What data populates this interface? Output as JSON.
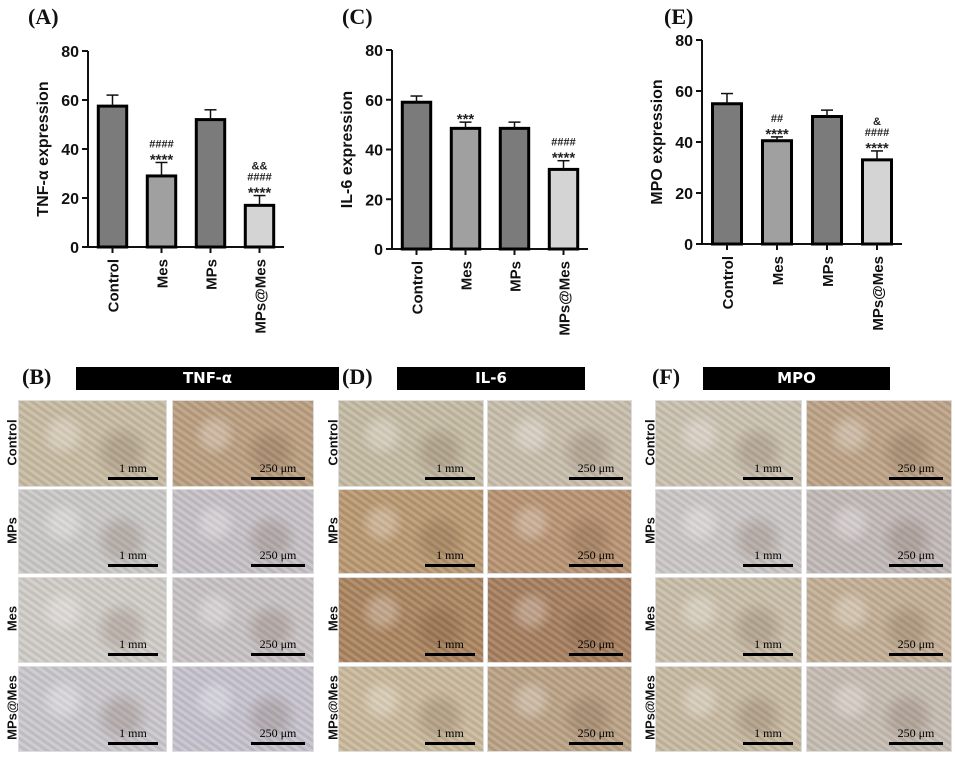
{
  "panels_label": {
    "A": "(A)",
    "B": "(B)",
    "C": "(C)",
    "D": "(D)",
    "E": "(E)",
    "F": "(F)"
  },
  "chart_data": [
    {
      "type": "bar",
      "panel": "A",
      "ylabel": "TNF-α expression",
      "ylim": [
        0,
        80
      ],
      "yticks": [
        "0",
        "20",
        "40",
        "60",
        "80"
      ],
      "categories": [
        "Control",
        "Mes",
        "MPs",
        "MPs@Mes"
      ],
      "values": [
        57.5,
        29,
        52,
        17
      ],
      "errors": [
        4.5,
        5.5,
        4,
        4
      ],
      "annotations": [
        [],
        [
          "####",
          "****"
        ],
        [],
        [
          "&&",
          "####",
          "****"
        ]
      ],
      "bar_colors": [
        "#7b7b7b",
        "#a0a0a0",
        "#7b7b7b",
        "#d4d4d4"
      ]
    },
    {
      "type": "bar",
      "panel": "C",
      "ylabel": "IL-6 expression",
      "ylim": [
        0,
        80
      ],
      "yticks": [
        "0",
        "20",
        "40",
        "60",
        "80"
      ],
      "categories": [
        "Control",
        "Mes",
        "MPs",
        "MPs@Mes"
      ],
      "values": [
        59,
        48.5,
        48.5,
        32
      ],
      "errors": [
        2.5,
        2.5,
        2.5,
        3.5
      ],
      "annotations": [
        [],
        [
          "***"
        ],
        [],
        [
          "####",
          "****"
        ]
      ],
      "bar_colors": [
        "#7b7b7b",
        "#a0a0a0",
        "#7b7b7b",
        "#d4d4d4"
      ]
    },
    {
      "type": "bar",
      "panel": "E",
      "ylabel": "MPO expression",
      "ylim": [
        0,
        80
      ],
      "yticks": [
        "0",
        "20",
        "40",
        "60",
        "80"
      ],
      "categories": [
        "Control",
        "Mes",
        "MPs",
        "MPs@Mes"
      ],
      "values": [
        55,
        40.5,
        50,
        33
      ],
      "errors": [
        4,
        1.5,
        2.5,
        3.5
      ],
      "annotations": [
        [],
        [
          "##",
          "****"
        ],
        [],
        [
          "&",
          "####",
          "****"
        ]
      ],
      "bar_colors": [
        "#7b7b7b",
        "#a0a0a0",
        "#7b7b7b",
        "#d4d4d4"
      ]
    }
  ],
  "histology": [
    {
      "panel": "B",
      "title": "TNF-α",
      "rows": [
        "Control",
        "MPs",
        "Mes",
        "MPs@Mes"
      ],
      "scale_bars": [
        "1 mm",
        "250 μm"
      ],
      "tile_colors": [
        [
          "#c6b9a0",
          "#b99d7e"
        ],
        [
          "#c9c7c6",
          "#c4bfc4"
        ],
        [
          "#cfcbc6",
          "#c6c0c2"
        ],
        [
          "#c9c6cb",
          "#c4c1cc"
        ]
      ]
    },
    {
      "panel": "D",
      "title": "IL-6",
      "rows": [
        "Control",
        "MPs",
        "Mes",
        "MPs@Mes"
      ],
      "scale_bars": [
        "1 mm",
        "250 μm"
      ],
      "tile_colors": [
        [
          "#c3b9a2",
          "#c6bcaa"
        ],
        [
          "#b8976f",
          "#b69170"
        ],
        [
          "#a9825d",
          "#a47c5c"
        ],
        [
          "#c8b79a",
          "#b8a083"
        ]
      ]
    },
    {
      "panel": "F",
      "title": "MPO",
      "rows": [
        "Control",
        "MPs",
        "Mes",
        "MPs@Mes"
      ],
      "scale_bars": [
        "1 mm",
        "250 μm"
      ],
      "tile_colors": [
        [
          "#c8bfae",
          "#bba184"
        ],
        [
          "#c9c5c4",
          "#c0b7b6"
        ],
        [
          "#c7bca6",
          "#c2ad93"
        ],
        [
          "#c6b8a0",
          "#c4bab0"
        ]
      ]
    }
  ]
}
